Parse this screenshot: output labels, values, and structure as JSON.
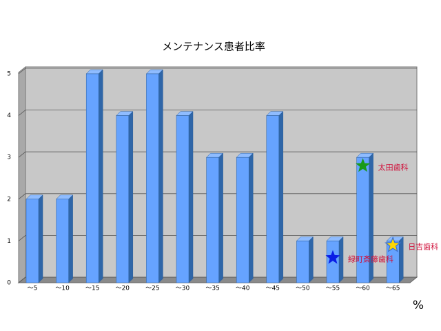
{
  "chart_data": {
    "type": "bar",
    "title": "メンテナンス患者比率",
    "categories": [
      "～5",
      "～10",
      "～15",
      "～20",
      "～25",
      "～30",
      "～35",
      "～40",
      "～45",
      "～50",
      "～55",
      "～60",
      "～65"
    ],
    "values": [
      2,
      2,
      5,
      4,
      5,
      4,
      3,
      3,
      4,
      1,
      1,
      3,
      1
    ],
    "color": "#66a3ff",
    "ylim": [
      0,
      5
    ],
    "yticks": [
      0,
      1,
      2,
      3,
      4,
      5
    ],
    "grid": true,
    "unit_label": "%",
    "annotations": [
      {
        "label": "太田歯科",
        "category": "～60",
        "value": 2.8,
        "color": "#1a9a1a"
      },
      {
        "label": "日吉歯科",
        "category": "～65",
        "value": 0.9,
        "color": "#ffd700"
      },
      {
        "label": "緑町斎藤歯科",
        "category": "～55",
        "value": 0.6,
        "color": "#0a1ee6"
      }
    ]
  }
}
